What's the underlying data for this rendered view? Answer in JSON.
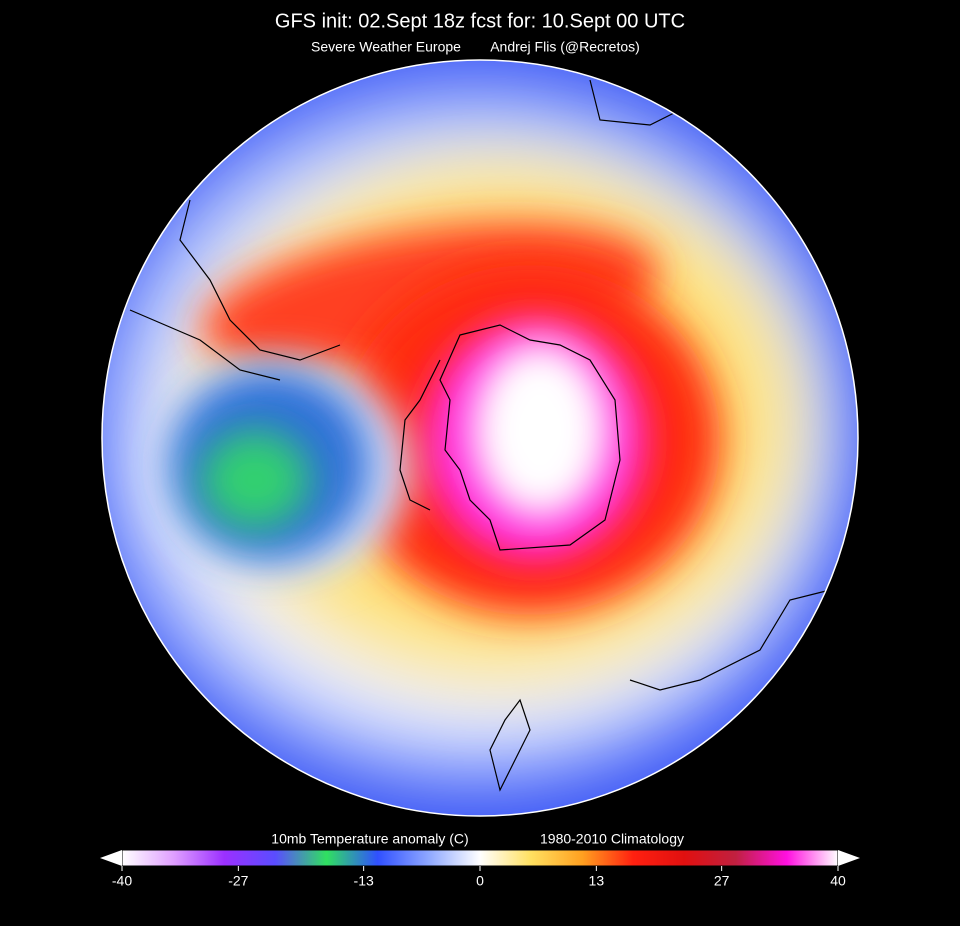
{
  "header": {
    "title": "GFS init: 02.Sept 18z  fcst for: 10.Sept  00 UTC",
    "source": "Severe Weather Europe",
    "author": "Andrej Flis (@Recretos)"
  },
  "colorbar": {
    "label": "10mb Temperature anomaly (C)",
    "reference": "1980-2010 Climatology",
    "range": [
      -40,
      40
    ],
    "ticks": [
      -40,
      -27,
      -13,
      0,
      13,
      27,
      40
    ],
    "colors": [
      "#ffffff",
      "#e0a0ff",
      "#9b30ff",
      "#5a4dff",
      "#30e060",
      "#3050ff",
      "#8fa8ff",
      "#ffffff",
      "#ffe060",
      "#ffa020",
      "#ff2010",
      "#e01010",
      "#c02040",
      "#ff10e0",
      "#ffffff"
    ]
  }
}
